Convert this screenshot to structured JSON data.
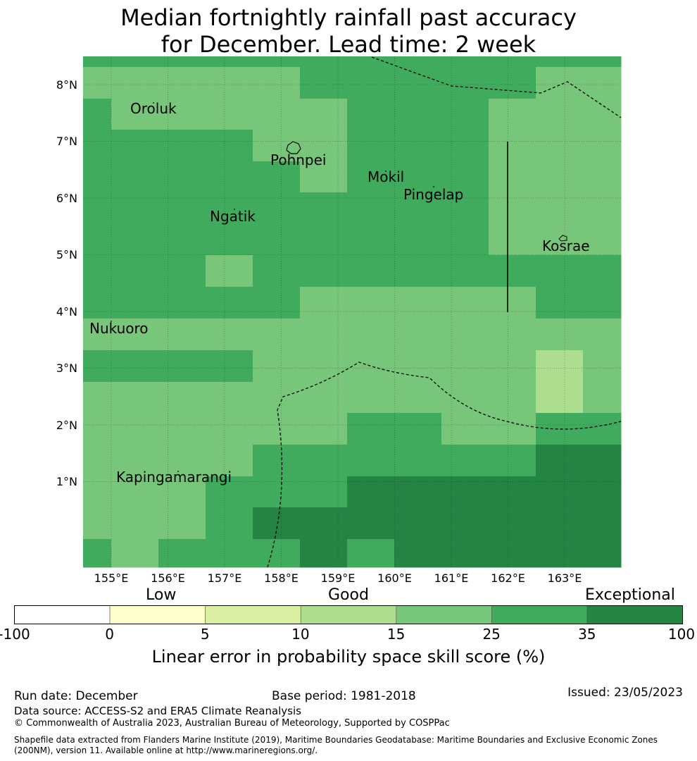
{
  "title": {
    "line1": "Median fortnightly rainfall past accuracy",
    "line2": "for December. Lead time: 2 week"
  },
  "map": {
    "lat_labels": [
      "8°N",
      "7°N",
      "6°N",
      "5°N",
      "4°N",
      "3°N",
      "2°N",
      "1°N"
    ],
    "lon_labels": [
      "155°E",
      "156°E",
      "157°E",
      "158°E",
      "159°E",
      "160°E",
      "161°E",
      "162°E",
      "163°E"
    ],
    "places": [
      "Oroluk",
      "Pohnpei",
      "Mokil",
      "Pingelap",
      "Ngatik",
      "Kosrae",
      "Nukuoro",
      "Kapingamarangi"
    ],
    "colors": {
      "bin_5_10": "#d9f0a3",
      "bin_10_15": "#addd8e",
      "bin_15_25": "#78c679",
      "bin_25_35": "#41ab5d",
      "bin_35_100": "#238443"
    }
  },
  "colorbar": {
    "category_labels": [
      "Low",
      "Good",
      "Exceptional"
    ],
    "ticks": [
      "-100",
      "0",
      "5",
      "10",
      "15",
      "25",
      "35",
      "100"
    ],
    "colors": [
      "#ffffff",
      "#ffffcc",
      "#d9f0a3",
      "#addd8e",
      "#78c679",
      "#41ab5d",
      "#238443"
    ],
    "title": "Linear error in probability space skill score (%)"
  },
  "footer": {
    "run_date": "Run date: December",
    "base_period": "Base period: 1981-2018",
    "issued": "Issued: 23/05/2023",
    "data_source": "Data source: ACCESS-S2 and ERA5 Climate Reanalysis",
    "copyright": "© Commonwealth of Australia 2023, Australian Bureau of Meteorology, Supported by COSPPac",
    "shapefile": "Shapefile data extracted from Flanders Marine Institute (2019), Maritime Boundaries Geodatabase: Maritime Boundaries and Exclusive Economic Zones (200NM), version 11. Available online at http://www.marineregions.org/."
  }
}
